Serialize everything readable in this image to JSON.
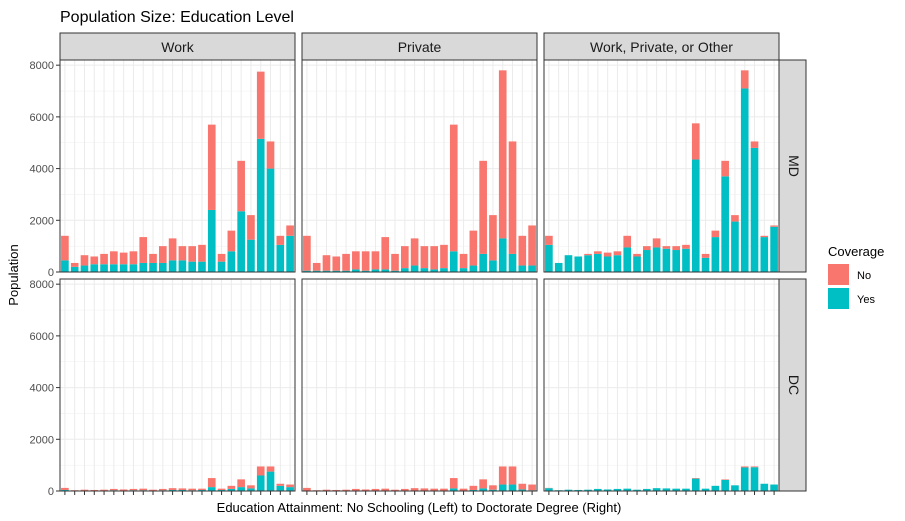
{
  "chart_data": {
    "type": "bar",
    "stacked": true,
    "title": "Population Size: Education Level",
    "xlabel": "Education Attainment: No Schooling (Left) to Doctorate Degree (Right)",
    "ylabel": "Population",
    "ylim": [
      0,
      8000
    ],
    "yticks": [
      0,
      2000,
      4000,
      6000,
      8000
    ],
    "grid": true,
    "facet_columns": [
      "Work",
      "Private",
      "Work, Private, or Other"
    ],
    "facet_rows": [
      "MD",
      "DC"
    ],
    "legend": {
      "title": "Coverage",
      "position": "right",
      "items": [
        {
          "label": "No",
          "color": "#F8766D"
        },
        {
          "label": "Yes",
          "color": "#00BFC4"
        }
      ]
    },
    "categories_count": 24,
    "panels": [
      {
        "column": "Work",
        "row": "MD",
        "series": [
          {
            "name": "No",
            "values": [
              950,
              150,
              400,
              300,
              400,
              500,
              450,
              500,
              1000,
              350,
              650,
              850,
              550,
              600,
              650,
              3300,
              300,
              800,
              1950,
              950,
              2600,
              1050,
              350,
              400
            ]
          },
          {
            "name": "Yes",
            "values": [
              450,
              200,
              250,
              300,
              300,
              300,
              300,
              300,
              350,
              350,
              350,
              450,
              450,
              400,
              400,
              2400,
              400,
              800,
              2350,
              1250,
              5150,
              4000,
              1050,
              1400
            ]
          }
        ]
      },
      {
        "column": "Private",
        "row": "MD",
        "series": [
          {
            "name": "No",
            "values": [
              1350,
              300,
              600,
              550,
              650,
              700,
              750,
              700,
              1250,
              650,
              850,
              1050,
              850,
              900,
              900,
              4900,
              550,
              1350,
              3600,
              1750,
              6500,
              4350,
              1150,
              1550
            ]
          },
          {
            "name": "Yes",
            "values": [
              50,
              50,
              50,
              50,
              50,
              100,
              50,
              100,
              100,
              50,
              150,
              250,
              150,
              100,
              150,
              800,
              150,
              250,
              700,
              450,
              1300,
              700,
              250,
              250
            ]
          }
        ]
      },
      {
        "column": "Work, Private, or Other",
        "row": "MD",
        "series": [
          {
            "name": "No",
            "values": [
              350,
              0,
              0,
              0,
              50,
              100,
              150,
              150,
              450,
              100,
              150,
              350,
              100,
              150,
              150,
              1400,
              150,
              250,
              600,
              250,
              700,
              250,
              50,
              50
            ]
          },
          {
            "name": "Yes",
            "values": [
              1050,
              350,
              650,
              600,
              650,
              700,
              600,
              650,
              950,
              600,
              850,
              950,
              900,
              850,
              900,
              4350,
              550,
              1350,
              3700,
              1950,
              7100,
              4800,
              1350,
              1750
            ]
          }
        ]
      },
      {
        "column": "Work",
        "row": "DC",
        "series": [
          {
            "name": "No",
            "values": [
              80,
              20,
              30,
              20,
              30,
              50,
              40,
              50,
              60,
              30,
              50,
              70,
              60,
              60,
              50,
              350,
              50,
              120,
              300,
              120,
              350,
              200,
              80,
              100
            ]
          },
          {
            "name": "Yes",
            "values": [
              40,
              10,
              20,
              20,
              20,
              30,
              20,
              30,
              30,
              20,
              30,
              40,
              40,
              30,
              40,
              150,
              40,
              80,
              150,
              100,
              600,
              750,
              200,
              150
            ]
          }
        ]
      },
      {
        "column": "Private",
        "row": "DC",
        "series": [
          {
            "name": "No",
            "values": [
              110,
              30,
              45,
              40,
              50,
              70,
              60,
              70,
              80,
              50,
              70,
              100,
              90,
              80,
              80,
              400,
              80,
              160,
              350,
              170,
              700,
              700,
              220,
              220
            ]
          },
          {
            "name": "Yes",
            "values": [
              10,
              0,
              5,
              0,
              0,
              10,
              0,
              10,
              10,
              0,
              10,
              10,
              10,
              10,
              10,
              100,
              10,
              40,
              100,
              50,
              250,
              250,
              60,
              30
            ]
          }
        ]
      },
      {
        "column": "Work, Private, or Other",
        "row": "DC",
        "series": [
          {
            "name": "No",
            "values": [
              10,
              0,
              0,
              0,
              0,
              0,
              0,
              0,
              0,
              0,
              0,
              0,
              0,
              0,
              0,
              20,
              0,
              0,
              20,
              0,
              40,
              30,
              0,
              0
            ]
          },
          {
            "name": "Yes",
            "values": [
              110,
              30,
              50,
              40,
              50,
              80,
              60,
              80,
              90,
              50,
              80,
              110,
              100,
              90,
              90,
              480,
              90,
              200,
              430,
              220,
              910,
              920,
              280,
              250
            ]
          }
        ]
      }
    ]
  }
}
